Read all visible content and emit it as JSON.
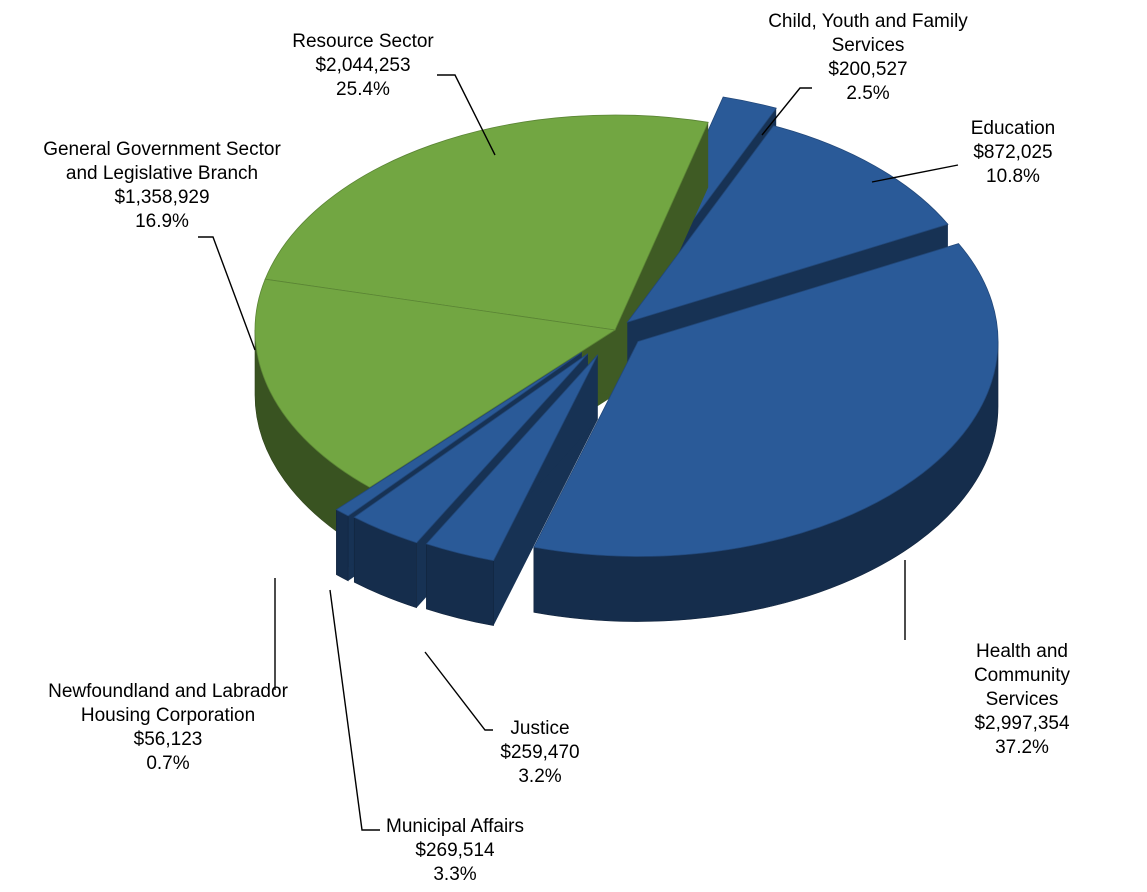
{
  "chart_data": {
    "type": "pie",
    "categories": [
      "Child, Youth and Family\nServices",
      "Education",
      "Health and Community\nServices",
      "Justice",
      "Municipal Affairs",
      "Newfoundland and Labrador\nHousing Corporation",
      "General Government Sector\nand Legislative Branch",
      "Resource Sector"
    ],
    "values": [
      200527,
      872025,
      2997354,
      259470,
      269514,
      56123,
      1358929,
      2044253
    ],
    "value_labels": [
      "$200,527",
      "$872,025",
      "$2,997,354",
      "$259,470",
      "$269,514",
      "$56,123",
      "$1,358,929",
      "$2,044,253"
    ],
    "percentages": [
      2.5,
      10.8,
      37.2,
      3.2,
      3.3,
      0.7,
      16.9,
      25.4
    ],
    "percentage_labels": [
      "2.5%",
      "10.8%",
      "37.2%",
      "3.2%",
      "3.3%",
      "0.7%",
      "16.9%",
      "25.4%"
    ],
    "colors": [
      "#2a5a98",
      "#2a5a98",
      "#2a5a98",
      "#2a5a98",
      "#2a5a98",
      "#2a5a98",
      "#72a642",
      "#72a642"
    ]
  }
}
